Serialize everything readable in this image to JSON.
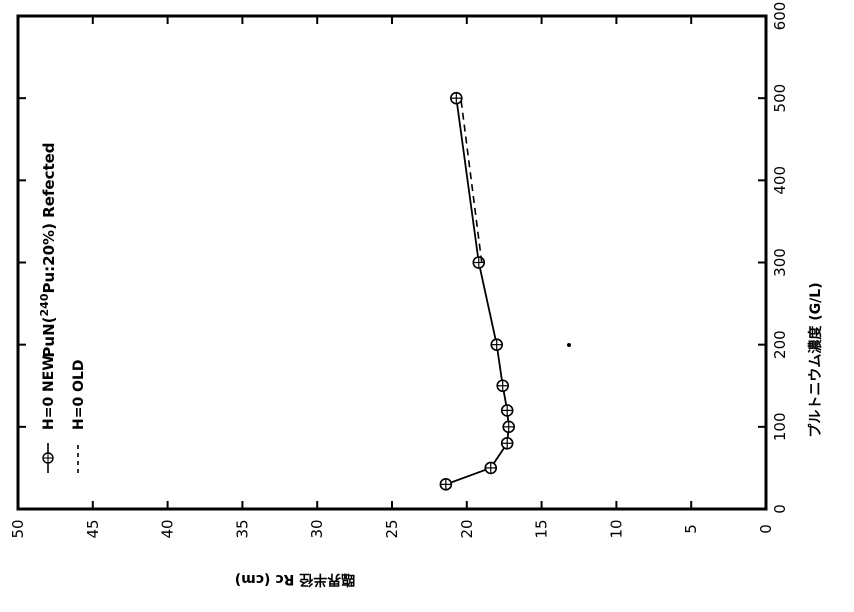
{
  "chart_data": {
    "type": "line",
    "title": "PuN(240Pu:20%) Refected",
    "title_parts": {
      "prefix": "PuN(",
      "superscript": "240",
      "rest": "Pu:20%) Refected"
    },
    "xlabel": "プルトニウム濃度 (G/L)",
    "ylabel": "臨界半径 Rc (cm)",
    "xlim": [
      0,
      600
    ],
    "ylim": [
      0,
      50
    ],
    "x_ticks": [
      "0",
      "100",
      "200",
      "300",
      "400",
      "500",
      "600"
    ],
    "y_ticks": [
      "0",
      "5",
      "10",
      "15",
      "20",
      "25",
      "30",
      "35",
      "40",
      "45",
      "50"
    ],
    "grid": false,
    "orientation": "rotated 90° clockwise",
    "legend_position": "top-left",
    "series": [
      {
        "name": "H=0 NEW",
        "line_style": "solid",
        "marker": "circle-plus",
        "x": [
          30,
          50,
          80,
          100,
          120,
          150,
          200,
          300,
          500
        ],
        "y": [
          21.4,
          18.4,
          17.3,
          17.2,
          17.3,
          17.6,
          18.0,
          19.2,
          20.7
        ]
      },
      {
        "name": "H=0 OLD",
        "line_style": "dashed",
        "marker": "none",
        "x": [
          300,
          500
        ],
        "y": [
          19.0,
          20.4
        ]
      }
    ]
  }
}
